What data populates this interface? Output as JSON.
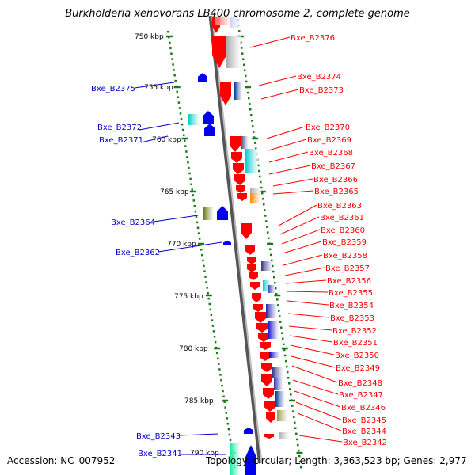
{
  "title": "Burkholderia xenovorans LB400 chromosome 2, complete genome",
  "accession": "Accession: NC_007952",
  "topology": "Topology: circular; Length: 3,363,523 bp; Genes: 2,977",
  "colors": {
    "right_label": "#ff0000",
    "left_label": "#0000cc",
    "backbone": "#888888",
    "ticks": "#007700"
  },
  "scale_labels": [
    "750 kbp",
    "755 kbp",
    "760 kbp",
    "765 kbp",
    "770 kbp",
    "775 kbp",
    "780 kbp",
    "785 kbp",
    "790 kbp"
  ],
  "right_genes": [
    "Bxe_B2376",
    "Bxe_B2374",
    "Bxe_B2373",
    "Bxe_B2370",
    "Bxe_B2369",
    "Bxe_B2368",
    "Bxe_B2367",
    "Bxe_B2366",
    "Bxe_B2365",
    "Bxe_B2363",
    "Bxe_B2361",
    "Bxe_B2360",
    "Bxe_B2359",
    "Bxe_B2358",
    "Bxe_B2357",
    "Bxe_B2356",
    "Bxe_B2355",
    "Bxe_B2354",
    "Bxe_B2353",
    "Bxe_B2352",
    "Bxe_B2351",
    "Bxe_B2350",
    "Bxe_B2349",
    "Bxe_B2348",
    "Bxe_B2347",
    "Bxe_B2346",
    "Bxe_B2345",
    "Bxe_B2344",
    "Bxe_B2342"
  ],
  "left_genes": [
    "Bxe_B2375",
    "Bxe_B2372",
    "Bxe_B2371",
    "Bxe_B2364",
    "Bxe_B2362",
    "Bxe_B2343",
    "Bxe_B2341"
  ]
}
